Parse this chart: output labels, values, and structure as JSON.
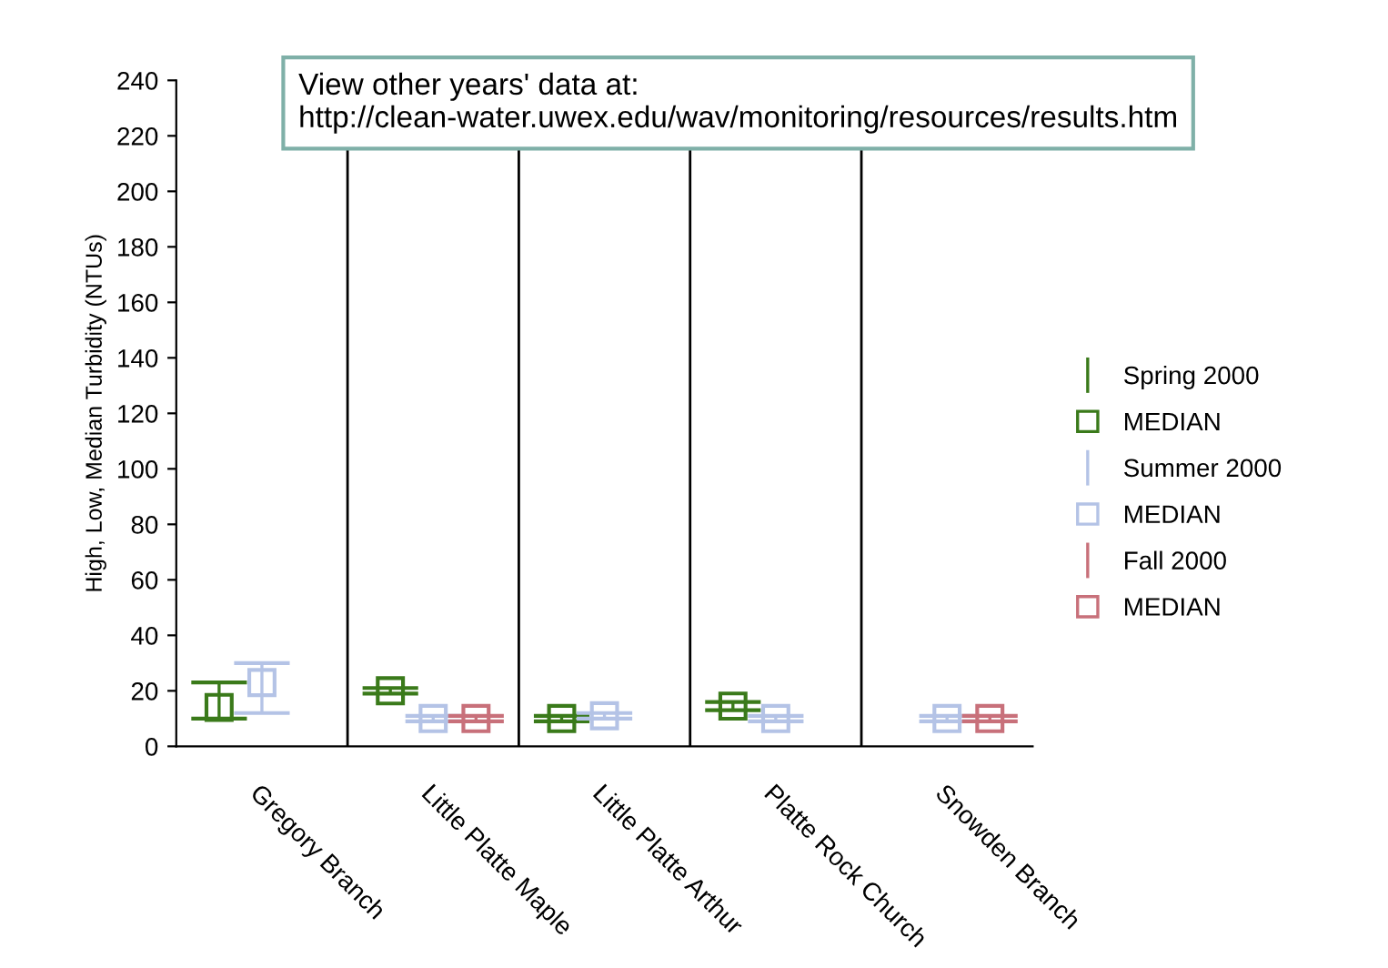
{
  "chart_data": {
    "type": "scatter",
    "ylabel": "High, Low, Median Turbidity (NTUs)",
    "categories": [
      "Gregory Branch",
      "Little Platte Maple",
      "Little Platte Arthur",
      "Platte Rock Church",
      "Snowden Branch"
    ],
    "ylim": [
      0,
      240
    ],
    "yticks": [
      0,
      20,
      40,
      60,
      80,
      100,
      120,
      140,
      160,
      180,
      200,
      220,
      240
    ],
    "grid": "x",
    "legend": "right",
    "marker": "square",
    "annotations": [
      "View other years' data at: http://clean-water.uwex.edu/wav/monitoring/resources/results.htm",
      "MEDIAN",
      "MEDIAN",
      "MEDIAN"
    ],
    "series": [
      {
        "name": "Spring 2000",
        "color": "#3a7a1a",
        "values": [
          14,
          20,
          10,
          14.5,
          null
        ],
        "errors": [
          [
            10,
            23
          ],
          [
            19,
            21
          ],
          [
            9,
            11
          ],
          [
            13,
            16
          ],
          null
        ]
      },
      {
        "name": "Summer 2000",
        "color": "#b4c3e6",
        "values": [
          23,
          10,
          11,
          10,
          10
        ],
        "errors": [
          [
            12,
            30
          ],
          [
            9,
            11
          ],
          [
            10,
            12
          ],
          [
            9,
            11
          ],
          [
            9,
            11
          ]
        ]
      },
      {
        "name": "Fall 2000",
        "color": "#c8707a",
        "values": [
          null,
          10,
          null,
          null,
          10
        ],
        "errors": [
          null,
          [
            9,
            11
          ],
          null,
          null,
          [
            9,
            11
          ]
        ]
      }
    ]
  }
}
